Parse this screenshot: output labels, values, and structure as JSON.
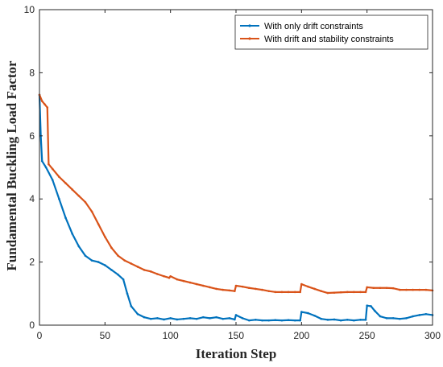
{
  "chart_data": {
    "type": "line",
    "xlabel": "Iteration Step",
    "ylabel": "Fundamental Buckling Load Factor",
    "xlim": [
      0,
      300
    ],
    "ylim": [
      0,
      10
    ],
    "xticks": [
      0,
      50,
      100,
      150,
      200,
      250,
      300
    ],
    "yticks": [
      0,
      2,
      4,
      6,
      8,
      10
    ],
    "grid": false,
    "legend_position": "top-right",
    "series": [
      {
        "name": "With only drift constraints",
        "color": "#0072BD",
        "points": [
          [
            0,
            7.3
          ],
          [
            1,
            6.0
          ],
          [
            2,
            5.2
          ],
          [
            5,
            5.0
          ],
          [
            10,
            4.6
          ],
          [
            15,
            4.0
          ],
          [
            20,
            3.4
          ],
          [
            25,
            2.9
          ],
          [
            30,
            2.5
          ],
          [
            35,
            2.2
          ],
          [
            40,
            2.05
          ],
          [
            45,
            2.0
          ],
          [
            50,
            1.9
          ],
          [
            55,
            1.75
          ],
          [
            60,
            1.6
          ],
          [
            64,
            1.45
          ],
          [
            67,
            1.0
          ],
          [
            70,
            0.6
          ],
          [
            75,
            0.35
          ],
          [
            80,
            0.25
          ],
          [
            85,
            0.2
          ],
          [
            90,
            0.22
          ],
          [
            95,
            0.18
          ],
          [
            100,
            0.22
          ],
          [
            105,
            0.18
          ],
          [
            110,
            0.2
          ],
          [
            115,
            0.22
          ],
          [
            120,
            0.2
          ],
          [
            125,
            0.25
          ],
          [
            130,
            0.22
          ],
          [
            135,
            0.25
          ],
          [
            140,
            0.2
          ],
          [
            145,
            0.22
          ],
          [
            149,
            0.18
          ],
          [
            150,
            0.32
          ],
          [
            155,
            0.22
          ],
          [
            160,
            0.15
          ],
          [
            165,
            0.17
          ],
          [
            170,
            0.15
          ],
          [
            175,
            0.15
          ],
          [
            180,
            0.16
          ],
          [
            185,
            0.15
          ],
          [
            190,
            0.16
          ],
          [
            195,
            0.15
          ],
          [
            199,
            0.15
          ],
          [
            200,
            0.42
          ],
          [
            205,
            0.38
          ],
          [
            210,
            0.3
          ],
          [
            215,
            0.2
          ],
          [
            220,
            0.17
          ],
          [
            225,
            0.18
          ],
          [
            230,
            0.15
          ],
          [
            235,
            0.17
          ],
          [
            240,
            0.15
          ],
          [
            245,
            0.17
          ],
          [
            249,
            0.17
          ],
          [
            250,
            0.62
          ],
          [
            253,
            0.6
          ],
          [
            256,
            0.45
          ],
          [
            260,
            0.28
          ],
          [
            265,
            0.22
          ],
          [
            270,
            0.22
          ],
          [
            275,
            0.2
          ],
          [
            280,
            0.22
          ],
          [
            285,
            0.28
          ],
          [
            290,
            0.32
          ],
          [
            295,
            0.35
          ],
          [
            300,
            0.32
          ]
        ]
      },
      {
        "name": "With drift and stability constraints",
        "color": "#D95319",
        "points": [
          [
            0,
            7.3
          ],
          [
            2,
            7.1
          ],
          [
            4,
            7.0
          ],
          [
            6,
            6.9
          ],
          [
            7,
            5.1
          ],
          [
            10,
            4.95
          ],
          [
            15,
            4.7
          ],
          [
            20,
            4.5
          ],
          [
            25,
            4.3
          ],
          [
            30,
            4.1
          ],
          [
            35,
            3.9
          ],
          [
            40,
            3.6
          ],
          [
            45,
            3.2
          ],
          [
            50,
            2.8
          ],
          [
            55,
            2.45
          ],
          [
            60,
            2.2
          ],
          [
            65,
            2.05
          ],
          [
            70,
            1.95
          ],
          [
            75,
            1.85
          ],
          [
            80,
            1.75
          ],
          [
            85,
            1.7
          ],
          [
            90,
            1.62
          ],
          [
            95,
            1.55
          ],
          [
            99,
            1.5
          ],
          [
            100,
            1.55
          ],
          [
            105,
            1.45
          ],
          [
            110,
            1.4
          ],
          [
            115,
            1.35
          ],
          [
            120,
            1.3
          ],
          [
            125,
            1.25
          ],
          [
            130,
            1.2
          ],
          [
            135,
            1.15
          ],
          [
            140,
            1.12
          ],
          [
            145,
            1.1
          ],
          [
            149,
            1.08
          ],
          [
            150,
            1.25
          ],
          [
            155,
            1.22
          ],
          [
            160,
            1.18
          ],
          [
            165,
            1.15
          ],
          [
            170,
            1.12
          ],
          [
            175,
            1.08
          ],
          [
            180,
            1.05
          ],
          [
            185,
            1.05
          ],
          [
            190,
            1.05
          ],
          [
            195,
            1.05
          ],
          [
            199,
            1.05
          ],
          [
            200,
            1.3
          ],
          [
            205,
            1.22
          ],
          [
            210,
            1.15
          ],
          [
            215,
            1.08
          ],
          [
            220,
            1.02
          ],
          [
            225,
            1.03
          ],
          [
            230,
            1.04
          ],
          [
            235,
            1.05
          ],
          [
            240,
            1.05
          ],
          [
            245,
            1.05
          ],
          [
            249,
            1.05
          ],
          [
            250,
            1.2
          ],
          [
            255,
            1.18
          ],
          [
            260,
            1.18
          ],
          [
            265,
            1.18
          ],
          [
            270,
            1.17
          ],
          [
            275,
            1.12
          ],
          [
            280,
            1.12
          ],
          [
            285,
            1.12
          ],
          [
            290,
            1.12
          ],
          [
            295,
            1.12
          ],
          [
            300,
            1.1
          ]
        ]
      }
    ]
  }
}
